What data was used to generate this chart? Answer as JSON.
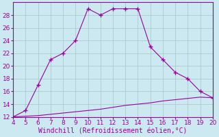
{
  "xlabel": "Windchill (Refroidissement éolien,°C)",
  "x_main": [
    4,
    5,
    6,
    7,
    8,
    9,
    10,
    11,
    12,
    13,
    14,
    15,
    16,
    17,
    18,
    19,
    20
  ],
  "y_main": [
    12,
    13,
    17,
    21,
    22,
    24,
    29,
    28,
    29,
    29,
    29,
    23,
    21,
    19,
    18,
    16,
    15
  ],
  "x_ref": [
    4,
    5,
    6,
    7,
    8,
    9,
    10,
    11,
    12,
    13,
    14,
    15,
    16,
    17,
    18,
    19,
    20
  ],
  "y_ref": [
    12,
    12.1,
    12.2,
    12.4,
    12.6,
    12.8,
    13.0,
    13.2,
    13.5,
    13.8,
    14.0,
    14.2,
    14.5,
    14.7,
    14.9,
    15.1,
    15.0
  ],
  "line_color": "#990099",
  "bg_color": "#cce8f0",
  "grid_color": "#aacccc",
  "xlim": [
    4,
    20
  ],
  "ylim": [
    12,
    30
  ],
  "xticks": [
    4,
    5,
    6,
    7,
    8,
    9,
    10,
    11,
    12,
    13,
    14,
    15,
    16,
    17,
    18,
    19,
    20
  ],
  "yticks": [
    12,
    14,
    16,
    18,
    20,
    22,
    24,
    26,
    28
  ],
  "tick_fontsize": 6.5,
  "xlabel_fontsize": 7
}
